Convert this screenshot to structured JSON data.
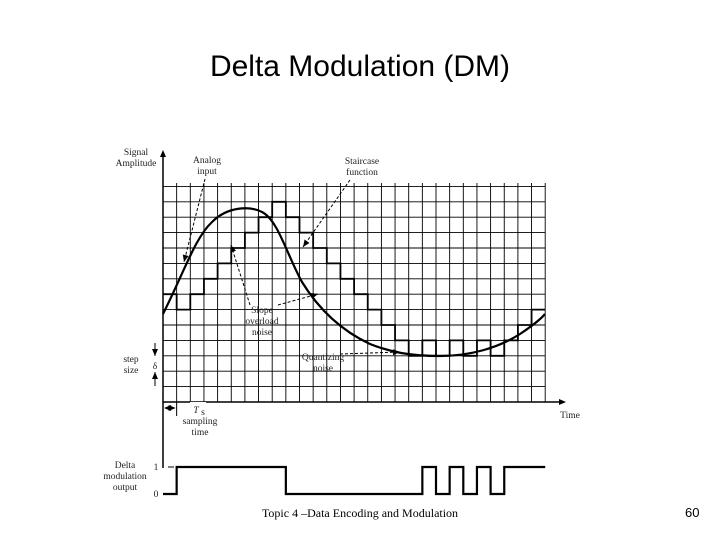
{
  "slide": {
    "title": "Delta Modulation (DM)",
    "footer": "Topic 4 –Data Encoding and Modulation",
    "page_number": "60"
  },
  "diagram": {
    "y_axis_label": [
      "Signal",
      "Amplitude"
    ],
    "x_axis_label": "Time",
    "analog_label": [
      "Analog",
      "input"
    ],
    "staircase_label": [
      "Staircase",
      "function"
    ],
    "slope_overload_label": [
      "Slope",
      "overload",
      "noise"
    ],
    "quantizing_label": [
      "Quantizing",
      "noise"
    ],
    "step_size_label": [
      "step",
      "size"
    ],
    "delta_symbol": "δ",
    "ts_label": "T",
    "ts_sub": "s",
    "sampling_label": [
      "sampling",
      "time"
    ],
    "dm_output_label": [
      "Delta",
      "modulation",
      "output"
    ],
    "bit_one": "1",
    "bit_zero": "0"
  },
  "chart_data": {
    "type": "line",
    "title": "Delta Modulation (DM)",
    "xlabel": "Time",
    "ylabel": "Signal Amplitude",
    "series": [
      {
        "name": "Staircase function",
        "x": [
          0,
          1,
          2,
          3,
          4,
          5,
          6,
          7,
          8,
          9,
          10,
          11,
          12,
          13,
          14,
          15,
          16,
          17,
          18,
          19,
          20,
          21,
          22,
          23,
          24,
          25,
          26,
          27
        ],
        "values": [
          7,
          6,
          7,
          8,
          9,
          10,
          11,
          12,
          13,
          12,
          11,
          10,
          9,
          8,
          7,
          6,
          5,
          4,
          3,
          4,
          3,
          4,
          3,
          4,
          3,
          4,
          5,
          6
        ]
      }
    ],
    "dm_bits": [
      0,
      1,
      1,
      1,
      1,
      1,
      1,
      1,
      1,
      0,
      0,
      0,
      0,
      0,
      0,
      0,
      0,
      0,
      0,
      1,
      0,
      1,
      0,
      1,
      0,
      1,
      1,
      1
    ]
  }
}
